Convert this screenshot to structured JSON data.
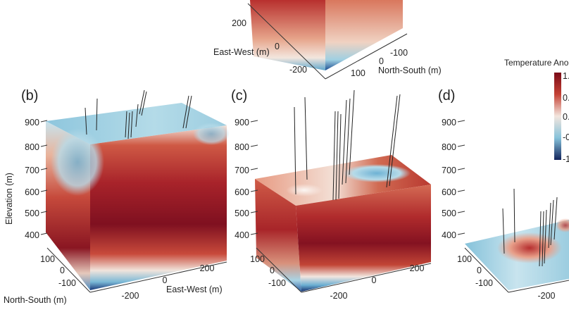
{
  "chart_data": {
    "type": "heatmap",
    "colorbar": {
      "title": "Temperature Ano",
      "tick_labels": [
        "1.",
        "0.",
        "0.",
        "-0",
        "-1"
      ],
      "colors": [
        "#7a0a16",
        "#c54235",
        "#f3e6de",
        "#86c2da",
        "#12245c"
      ]
    },
    "panels": [
      {
        "id": "a",
        "label": "",
        "axes": {
          "xlabel": "East-West (m)",
          "ylabel": "North-South (m)",
          "x_ticks": [
            "200",
            "0",
            "-200"
          ],
          "y_ticks": [
            "-100",
            "0",
            "100"
          ]
        }
      },
      {
        "id": "b",
        "label": "(b)",
        "axes": {
          "zlabel": "Elevation (m)",
          "ylabel": "North-South (m)",
          "xlabel": "East-West (m)",
          "z_ticks": [
            "900",
            "800",
            "700",
            "600",
            "500",
            "400"
          ],
          "y_ticks": [
            "100",
            "0",
            "-100"
          ],
          "x_ticks": [
            "-200",
            "0",
            "200"
          ],
          "zlim": [
            350,
            950
          ]
        }
      },
      {
        "id": "c",
        "label": "(c)",
        "axes": {
          "z_ticks": [
            "900",
            "800",
            "700",
            "600",
            "500",
            "400"
          ],
          "y_ticks": [
            "100",
            "0",
            "-100"
          ],
          "x_ticks": [
            "-200",
            "0",
            "200"
          ]
        }
      },
      {
        "id": "d",
        "label": "(d)",
        "axes": {
          "z_ticks": [
            "900",
            "800",
            "700",
            "600",
            "500",
            "400"
          ],
          "y_ticks": [
            "100",
            "0",
            "-100"
          ],
          "x_ticks": [
            "-200"
          ]
        }
      }
    ]
  }
}
